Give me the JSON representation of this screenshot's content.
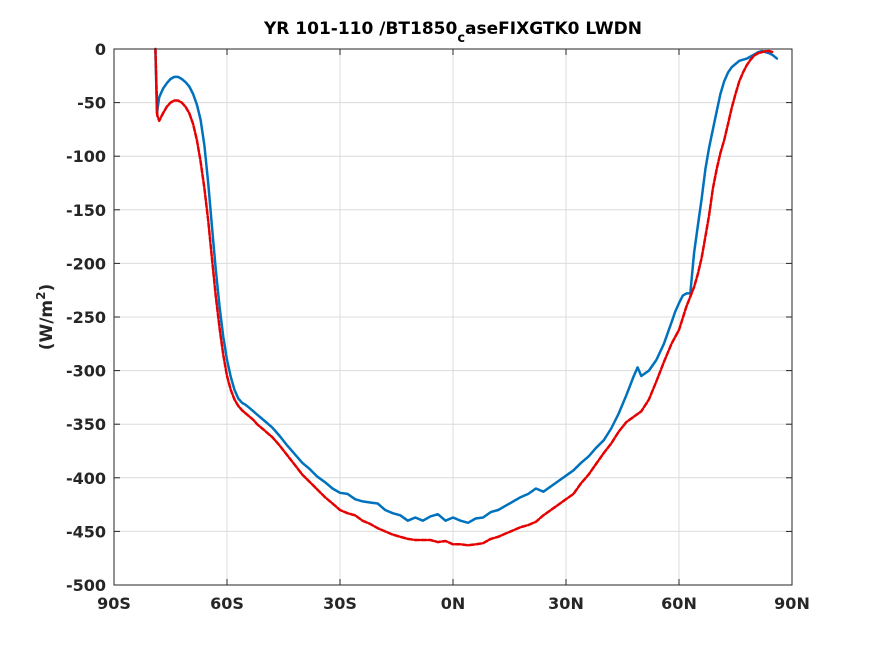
{
  "chart_data": {
    "type": "line",
    "title": {
      "main": "YR 101-110 /BT1850",
      "subscript": "c",
      "rest": "aseFIXGTK0 LWDN"
    },
    "ylabel": {
      "prefix": "(W/m",
      "superscript": "2",
      "suffix": ")"
    },
    "xlabel": "",
    "xlim": [
      -90,
      90
    ],
    "ylim": [
      -500,
      0
    ],
    "grid": true,
    "x_ticks": [
      {
        "value": -90,
        "label": "90S"
      },
      {
        "value": -60,
        "label": "60S"
      },
      {
        "value": -30,
        "label": "30S"
      },
      {
        "value": 0,
        "label": "0N"
      },
      {
        "value": 30,
        "label": "30N"
      },
      {
        "value": 60,
        "label": "60N"
      },
      {
        "value": 90,
        "label": "90N"
      }
    ],
    "y_ticks": [
      {
        "value": 0,
        "label": "0"
      },
      {
        "value": -50,
        "label": "-50"
      },
      {
        "value": -100,
        "label": "-100"
      },
      {
        "value": -150,
        "label": "-150"
      },
      {
        "value": -200,
        "label": "-200"
      },
      {
        "value": -250,
        "label": "-250"
      },
      {
        "value": -300,
        "label": "-300"
      },
      {
        "value": -350,
        "label": "-350"
      },
      {
        "value": -400,
        "label": "-400"
      },
      {
        "value": -450,
        "label": "-450"
      },
      {
        "value": -500,
        "label": "-500"
      }
    ],
    "series": [
      {
        "color": "#0072BD",
        "style": "solid",
        "x": [
          -79,
          -78.6,
          -78,
          -77,
          -76,
          -75,
          -74,
          -73,
          -72,
          -71,
          -70,
          -69,
          -68,
          -67,
          -66,
          -65,
          -64,
          -63,
          -62,
          -61,
          -60,
          -59,
          -58,
          -57,
          -56,
          -55,
          -54,
          -53,
          -52,
          -50,
          -48,
          -46,
          -44,
          -42,
          -40,
          -38,
          -36,
          -34,
          -32,
          -30,
          -28,
          -26,
          -24,
          -22,
          -20,
          -18,
          -16,
          -14,
          -12,
          -10,
          -8,
          -6,
          -4,
          -2,
          0,
          2,
          4,
          6,
          8,
          10,
          12,
          14,
          16,
          18,
          20,
          22,
          24,
          26,
          28,
          30,
          32,
          34,
          36,
          38,
          40,
          42,
          44,
          46,
          48,
          49,
          50,
          52,
          54,
          56,
          57,
          58,
          59,
          60,
          61,
          62,
          63,
          64,
          65,
          66,
          67,
          68,
          69,
          70,
          71,
          72,
          73,
          74,
          75,
          76,
          77,
          78,
          79,
          80,
          81,
          82,
          83,
          84,
          85,
          86
        ],
        "y": [
          0,
          -60,
          -45,
          -37,
          -32,
          -28,
          -26,
          -26,
          -28,
          -31,
          -35,
          -42,
          -52,
          -66,
          -90,
          -125,
          -165,
          -205,
          -240,
          -268,
          -290,
          -306,
          -318,
          -326,
          -330,
          -332,
          -335,
          -338,
          -341,
          -347,
          -353,
          -361,
          -370,
          -378,
          -386,
          -392,
          -399,
          -404,
          -410,
          -414,
          -415,
          -420,
          -422,
          -423,
          -424,
          -430,
          -433,
          -435,
          -440,
          -437,
          -440,
          -436,
          -434,
          -440,
          -437,
          -440,
          -442,
          -438,
          -437,
          -432,
          -430,
          -426,
          -422,
          -418,
          -415,
          -410,
          -413,
          -408,
          -403,
          -398,
          -393,
          -386,
          -380,
          -372,
          -365,
          -354,
          -340,
          -323,
          -305,
          -297,
          -305,
          -300,
          -290,
          -275,
          -265,
          -255,
          -245,
          -237,
          -230,
          -228,
          -228,
          -190,
          -165,
          -140,
          -112,
          -92,
          -75,
          -58,
          -42,
          -30,
          -22,
          -17,
          -14,
          -11,
          -10,
          -9,
          -7,
          -5,
          -3,
          -2,
          -3,
          -4,
          -6,
          -9
        ]
      },
      {
        "color": "#E60000",
        "style": "dashed",
        "x": [
          -79,
          -78.5,
          -78,
          -77,
          -76,
          -75,
          -74,
          -73,
          -72,
          -71,
          -70,
          -69,
          -68,
          -67,
          -66,
          -65,
          -64,
          -63,
          -62,
          -61,
          -60,
          -59,
          -58,
          -57,
          -56,
          -55,
          -54,
          -53,
          -52,
          -50,
          -48,
          -46,
          -44,
          -42,
          -40,
          -38,
          -36,
          -34,
          -32,
          -30,
          -28,
          -26,
          -24,
          -22,
          -20,
          -18,
          -16,
          -14,
          -12,
          -10,
          -8,
          -6,
          -4,
          -2,
          0,
          2,
          4,
          6,
          8,
          10,
          12,
          14,
          16,
          18,
          20,
          22,
          24,
          26,
          28,
          30,
          32,
          34,
          36,
          38,
          40,
          42,
          44,
          46,
          48,
          50,
          52,
          54,
          56,
          58,
          60,
          62,
          64,
          65,
          66,
          67,
          68,
          69,
          70,
          71,
          72,
          73,
          74,
          75,
          76,
          77,
          78,
          79,
          80,
          81,
          82,
          83,
          84,
          85
        ],
        "y": [
          0,
          -62,
          -67,
          -60,
          -54,
          -50,
          -48,
          -48,
          -50,
          -54,
          -60,
          -70,
          -85,
          -105,
          -130,
          -160,
          -195,
          -230,
          -260,
          -285,
          -305,
          -318,
          -327,
          -333,
          -337,
          -340,
          -343,
          -346,
          -350,
          -356,
          -362,
          -370,
          -379,
          -388,
          -397,
          -404,
          -411,
          -418,
          -424,
          -430,
          -433,
          -435,
          -440,
          -443,
          -447,
          -450,
          -453,
          -455,
          -457,
          -458,
          -458,
          -458,
          -460,
          -459,
          -462,
          -462,
          -463,
          -462,
          -461,
          -457,
          -455,
          -452,
          -449,
          -446,
          -444,
          -441,
          -435,
          -430,
          -425,
          -420,
          -415,
          -405,
          -397,
          -387,
          -377,
          -368,
          -357,
          -348,
          -343,
          -338,
          -327,
          -310,
          -292,
          -275,
          -262,
          -240,
          -222,
          -210,
          -195,
          -175,
          -155,
          -130,
          -112,
          -97,
          -85,
          -70,
          -55,
          -42,
          -30,
          -22,
          -15,
          -10,
          -6,
          -4,
          -3,
          -2,
          -2,
          -3
        ]
      }
    ]
  }
}
